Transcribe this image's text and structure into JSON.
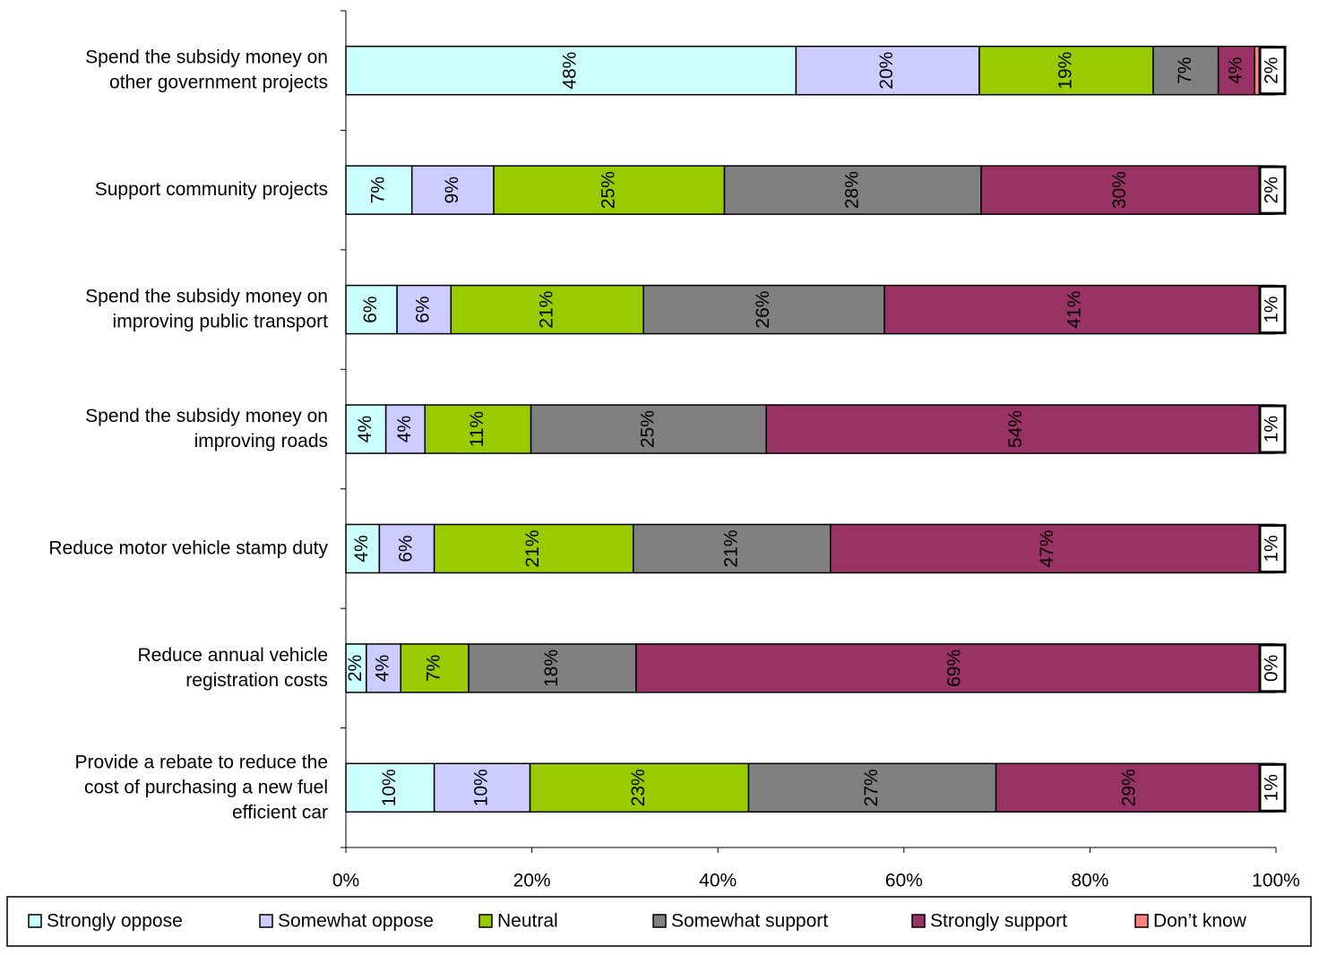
{
  "chart_data": {
    "type": "stacked-bar-horizontal",
    "categories": [
      "Spend the subsidy money on\nother government projects",
      "Support community projects",
      "Spend the subsidy money on\nimproving public transport",
      "Spend the subsidy money on\nimproving roads",
      "Reduce motor vehicle stamp duty",
      "Reduce annual vehicle\nregistration costs",
      "Provide a rebate to reduce the\ncost of purchasing a new fuel\nefficient car"
    ],
    "series": [
      {
        "name": "Strongly oppose",
        "color": "#ccffff",
        "values": [
          48.4,
          7.1,
          5.5,
          4.3,
          3.6,
          2.2,
          9.5
        ],
        "value_labels": [
          "48%",
          "7%",
          "6%",
          "4%",
          "4%",
          "2%",
          "10%"
        ]
      },
      {
        "name": "Somewhat oppose",
        "color": "#ccccff",
        "values": [
          19.7,
          8.8,
          5.8,
          4.2,
          5.9,
          3.7,
          10.3
        ],
        "value_labels": [
          "20%",
          "9%",
          "6%",
          "4%",
          "6%",
          "4%",
          "10%"
        ]
      },
      {
        "name": "Neutral",
        "color": "#99cc00",
        "values": [
          18.7,
          24.8,
          20.7,
          11.4,
          21.4,
          7.3,
          23.5
        ],
        "value_labels": [
          "19%",
          "25%",
          "21%",
          "11%",
          "21%",
          "7%",
          "23%"
        ]
      },
      {
        "name": "Somewhat support",
        "color": "#808080",
        "values": [
          7.0,
          27.6,
          25.9,
          25.3,
          21.2,
          18.0,
          26.6
        ],
        "value_labels": [
          "7%",
          "28%",
          "26%",
          "25%",
          "21%",
          "18%",
          "27%"
        ]
      },
      {
        "name": "Strongly support",
        "color": "#993366",
        "values": [
          3.9,
          30.0,
          41.0,
          53.8,
          46.8,
          68.6,
          28.8
        ],
        "value_labels": [
          "4%",
          "30%",
          "41%",
          "54%",
          "47%",
          "69%",
          "29%"
        ]
      },
      {
        "name": "Don’t know",
        "color": "#ff8080",
        "values": [
          2.3,
          1.7,
          1.1,
          1.0,
          1.1,
          0.2,
          1.3
        ],
        "value_labels": [
          "2%",
          "2%",
          "1%",
          "1%",
          "1%",
          "0%",
          "1%"
        ]
      }
    ],
    "xlim": [
      0,
      100
    ],
    "xticks": [
      {
        "value": 0,
        "label": "0%"
      },
      {
        "value": 20,
        "label": "20%"
      },
      {
        "value": 40,
        "label": "40%"
      },
      {
        "value": 60,
        "label": "60%"
      },
      {
        "value": 80,
        "label": "80%"
      },
      {
        "value": 100,
        "label": "100%"
      }
    ]
  }
}
